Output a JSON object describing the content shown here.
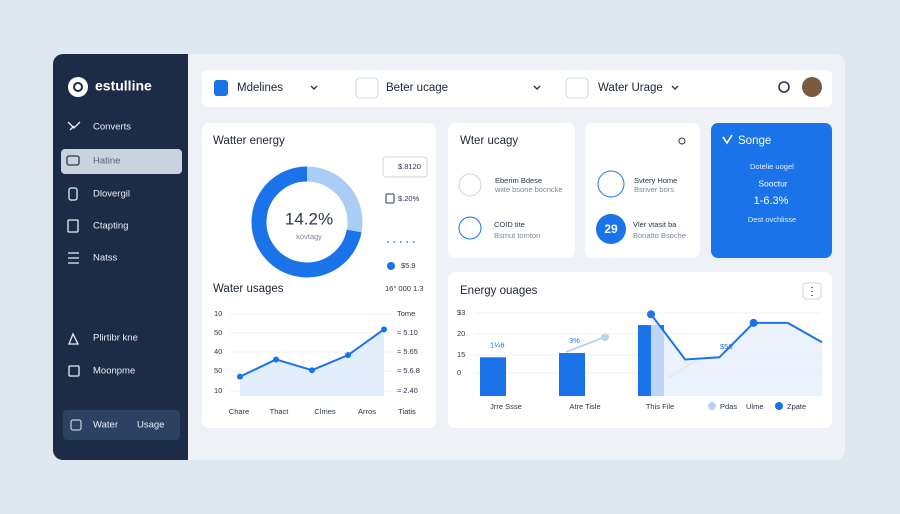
{
  "sidebar": {
    "brand": "estulline",
    "menu": [
      "Converts",
      "Hatine",
      "Dlovergil",
      "Ctapting",
      "Natss",
      "Plirtibr kne",
      "Moonpme"
    ],
    "button": [
      "Water",
      "Usage"
    ]
  },
  "topbar": {
    "items": [
      "Mdelines",
      "Beter ucage",
      "Water Urage"
    ]
  },
  "water_energy": {
    "title": "Watter energy",
    "center_value": "14.2%",
    "center_label": "kovtagy",
    "legend": [
      "$.8120",
      "$.20%",
      "$5.9"
    ],
    "donut": {
      "values": [
        28,
        72
      ],
      "colors": [
        "#a9cdf5",
        "#1a73e8"
      ]
    }
  },
  "water_usages": {
    "title": "Water usages",
    "total": "16° 000 1.3",
    "y_labels": [
      "10",
      "50",
      "40",
      "50",
      "10"
    ],
    "right_labels": [
      "Tome",
      "≈ 5.10",
      "≈ 5.65",
      "≈ 5.6.8",
      "≈ 2.40"
    ],
    "x_labels": [
      "Chare",
      "Thact",
      "Clmes",
      "Arros",
      "Tiatis"
    ],
    "values": [
      9,
      17,
      12,
      19,
      31
    ],
    "ylim": [
      0,
      40
    ],
    "color": "#1a73e8"
  },
  "water_usage_card": {
    "title": "Wter ucagy",
    "items": [
      {
        "title": "Eberim Bdese",
        "subtitle": "wiite bsone bocncke"
      },
      {
        "title": "COID tite",
        "subtitle": "Bsmut tomton"
      }
    ]
  },
  "home_card": {
    "items": [
      {
        "title": "Svtery Home",
        "subtitle": "Bsriver bors"
      },
      {
        "badge": "29",
        "title": "Vler vtasit ba",
        "subtitle": "Bonatto Bsoche"
      }
    ]
  },
  "highlight_card": {
    "title": "Songe",
    "lines": [
      "Dotelie uogel",
      "Sooctur",
      "1-6.3%",
      "Dest ovchlisse"
    ]
  },
  "energy": {
    "title": "Energy ouages",
    "y_labels": [
      "$3",
      "20",
      "15",
      "0"
    ],
    "x_labels": [
      "Jrre Ssse",
      "Atre Tisle",
      "This File"
    ],
    "bar_labels": [
      "1¼6",
      "3%"
    ],
    "line_label": "$50",
    "bars": [
      18,
      20,
      33
    ],
    "line": [
      38,
      17,
      18,
      34,
      34,
      25
    ],
    "ylim": [
      0,
      40
    ],
    "legend": [
      "Pdas",
      "Ulme",
      "Zpate"
    ],
    "colors": [
      "#1a73e8",
      "#b7d3f3"
    ]
  }
}
